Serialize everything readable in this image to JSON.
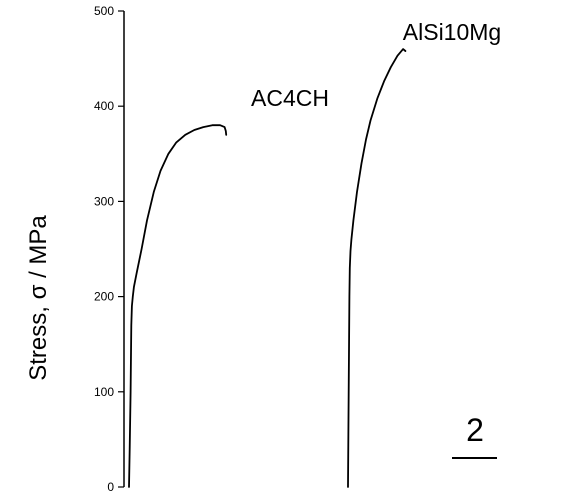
{
  "chart_data": {
    "type": "line",
    "title": "",
    "xlabel": "",
    "ylabel": "Stress, σ / MPa",
    "ylim": [
      0,
      500
    ],
    "yticks": [
      0,
      100,
      200,
      300,
      400,
      500
    ],
    "grid": false,
    "scale_marker": {
      "label": "2"
    },
    "series": [
      {
        "name": "AC4CH",
        "x": [
          0.0,
          0.03,
          0.07,
          0.1,
          0.13,
          0.17,
          0.22,
          0.34,
          0.56,
          0.8,
          1.1,
          1.4,
          1.75,
          2.1,
          2.5,
          2.9,
          3.3,
          3.7,
          4.05,
          4.25,
          4.3,
          4.32
        ],
        "y": [
          0,
          40,
          100,
          170,
          190,
          200,
          210,
          225,
          250,
          280,
          310,
          332,
          350,
          362,
          370,
          375,
          378,
          380,
          380,
          378,
          374,
          370
        ]
      },
      {
        "name": "AlSi10Mg",
        "x": [
          0.0,
          0.02,
          0.04,
          0.06,
          0.08,
          0.11,
          0.15,
          0.24,
          0.4,
          0.6,
          0.8,
          1.0,
          1.3,
          1.6,
          1.9,
          2.2,
          2.45,
          2.55
        ],
        "y": [
          0,
          60,
          130,
          200,
          230,
          248,
          260,
          280,
          310,
          340,
          365,
          385,
          408,
          426,
          441,
          453,
          460,
          458
        ]
      }
    ]
  }
}
